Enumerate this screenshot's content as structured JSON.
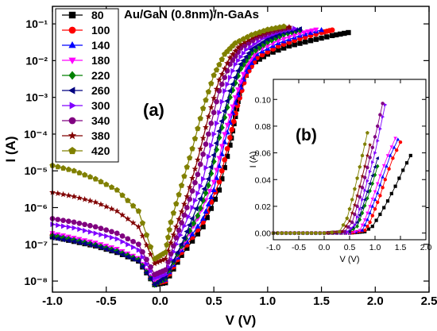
{
  "chart_data": [
    {
      "type": "scatter",
      "title": "Au/GaN (0.8nm)/n-GaAs",
      "panel_label": "(a)",
      "xlabel": "V (V)",
      "ylabel": "I (A)",
      "xlim": [
        -1.0,
        2.5
      ],
      "ylim": [
        5e-09,
        0.3
      ],
      "yscale": "log",
      "xticks": [
        "-1.0",
        "-0.5",
        "0.0",
        "0.5",
        "1.0",
        "1.5",
        "2.0",
        "2.5"
      ],
      "yticks": [
        "10⁻⁸",
        "10⁻⁷",
        "10⁻⁶",
        "10⁻⁵",
        "10⁻⁴",
        "10⁻³",
        "10⁻²",
        "10⁻¹"
      ],
      "legend_position": "top-left",
      "series": [
        {
          "name": "80",
          "color": "#000000",
          "marker": "square",
          "x": [
            -1.0,
            -0.8,
            -0.6,
            -0.4,
            -0.2,
            -0.05,
            0.05,
            0.2,
            0.4,
            0.55,
            0.65,
            0.7,
            0.75,
            0.85,
            1.0,
            1.2,
            1.4,
            1.6,
            1.75
          ],
          "y": [
            1.6e-07,
            1.2e-07,
            9e-08,
            6e-08,
            3.5e-08,
            8e-09,
            9e-09,
            5e-08,
            3e-07,
            3e-06,
            5e-05,
            0.0003,
            0.002,
            0.008,
            0.015,
            0.025,
            0.035,
            0.048,
            0.058
          ]
        },
        {
          "name": "100",
          "color": "#ff0000",
          "marker": "circle",
          "x": [
            -1.0,
            -0.8,
            -0.6,
            -0.4,
            -0.2,
            -0.05,
            0.05,
            0.2,
            0.4,
            0.55,
            0.65,
            0.72,
            0.8,
            0.9,
            1.1,
            1.3,
            1.5,
            1.6
          ],
          "y": [
            1.8e-07,
            1.3e-07,
            9.5e-08,
            6.5e-08,
            3.8e-08,
            8.5e-09,
            1e-08,
            6e-08,
            4e-07,
            5e-06,
            8e-05,
            0.0006,
            0.004,
            0.012,
            0.025,
            0.04,
            0.058,
            0.068
          ]
        },
        {
          "name": "140",
          "color": "#0000ff",
          "marker": "triangle-up",
          "x": [
            -1.0,
            -0.8,
            -0.6,
            -0.4,
            -0.2,
            -0.05,
            0.05,
            0.2,
            0.4,
            0.5,
            0.6,
            0.7,
            0.8,
            0.9,
            1.1,
            1.3,
            1.5
          ],
          "y": [
            1.9e-07,
            1.4e-07,
            1e-07,
            7e-08,
            4e-08,
            9e-09,
            1.1e-08,
            7e-08,
            5e-07,
            3e-06,
            6e-05,
            0.0007,
            0.005,
            0.015,
            0.03,
            0.048,
            0.068
          ]
        },
        {
          "name": "180",
          "color": "#ff00ff",
          "marker": "triangle-down",
          "x": [
            -1.0,
            -0.8,
            -0.6,
            -0.4,
            -0.2,
            -0.05,
            0.05,
            0.2,
            0.35,
            0.5,
            0.6,
            0.7,
            0.8,
            0.9,
            1.1,
            1.3,
            1.45
          ],
          "y": [
            2e-07,
            1.5e-07,
            1.1e-07,
            7.5e-08,
            4.2e-08,
            9e-09,
            1.2e-08,
            8e-08,
            5e-07,
            5e-06,
            0.0001,
            0.001,
            0.007,
            0.018,
            0.035,
            0.055,
            0.07
          ]
        },
        {
          "name": "220",
          "color": "#008000",
          "marker": "diamond",
          "x": [
            -1.0,
            -0.8,
            -0.6,
            -0.4,
            -0.2,
            -0.05,
            0.05,
            0.2,
            0.35,
            0.45,
            0.55,
            0.65,
            0.75,
            0.85,
            1.0,
            1.15,
            1.3
          ],
          "y": [
            1.7e-07,
            1.3e-07,
            9.5e-08,
            6.5e-08,
            3.8e-08,
            8e-09,
            1.2e-08,
            9e-08,
            6e-07,
            4e-06,
            8e-05,
            0.001,
            0.006,
            0.016,
            0.032,
            0.052,
            0.068
          ]
        },
        {
          "name": "260",
          "color": "#000080",
          "marker": "triangle-left",
          "x": [
            -1.0,
            -0.8,
            -0.6,
            -0.4,
            -0.2,
            -0.05,
            0.05,
            0.2,
            0.3,
            0.45,
            0.55,
            0.65,
            0.75,
            0.85,
            1.0,
            1.15,
            1.3
          ],
          "y": [
            1.5e-07,
            1.2e-07,
            9e-08,
            6e-08,
            3.5e-08,
            8e-09,
            1.3e-08,
            1e-07,
            5e-07,
            6e-06,
            0.00012,
            0.0015,
            0.008,
            0.02,
            0.038,
            0.058,
            0.072
          ]
        },
        {
          "name": "300",
          "color": "#8000ff",
          "marker": "triangle-right",
          "x": [
            -1.0,
            -0.8,
            -0.6,
            -0.4,
            -0.2,
            -0.05,
            0.05,
            0.15,
            0.3,
            0.4,
            0.5,
            0.6,
            0.7,
            0.8,
            0.95,
            1.1,
            1.25
          ],
          "y": [
            3.5e-07,
            2.8e-07,
            2e-07,
            1.4e-07,
            7e-08,
            1.2e-08,
            1.5e-08,
            1e-07,
            1e-06,
            6e-06,
            0.0001,
            0.0015,
            0.008,
            0.02,
            0.04,
            0.06,
            0.075
          ]
        },
        {
          "name": "340",
          "color": "#800080",
          "marker": "circle",
          "x": [
            -1.0,
            -0.8,
            -0.6,
            -0.4,
            -0.2,
            -0.05,
            0.05,
            0.15,
            0.25,
            0.35,
            0.45,
            0.55,
            0.65,
            0.75,
            0.9,
            1.05,
            1.2
          ],
          "y": [
            5e-07,
            4e-07,
            3e-07,
            2e-07,
            1e-07,
            1.5e-08,
            2e-08,
            1.5e-07,
            1e-06,
            8e-06,
            0.0001,
            0.0015,
            0.008,
            0.022,
            0.042,
            0.062,
            0.078
          ]
        },
        {
          "name": "380",
          "color": "#800000",
          "marker": "star",
          "x": [
            -1.0,
            -0.8,
            -0.6,
            -0.4,
            -0.2,
            -0.05,
            0.05,
            0.15,
            0.25,
            0.35,
            0.45,
            0.55,
            0.65,
            0.75,
            0.9,
            1.05,
            1.2
          ],
          "y": [
            2.6e-06,
            2e-06,
            1.4e-06,
            8e-07,
            3e-07,
            3e-08,
            4e-08,
            3e-07,
            2e-06,
            2e-05,
            0.0003,
            0.003,
            0.012,
            0.028,
            0.048,
            0.068,
            0.082
          ]
        },
        {
          "name": "420",
          "color": "#808000",
          "marker": "pentagon",
          "x": [
            -1.0,
            -0.8,
            -0.6,
            -0.4,
            -0.2,
            -0.05,
            0.05,
            0.1,
            0.2,
            0.3,
            0.4,
            0.5,
            0.6,
            0.7,
            0.85,
            1.0,
            1.15
          ],
          "y": [
            1.4e-05,
            1e-05,
            6e-06,
            3e-06,
            8e-07,
            4e-08,
            6e-08,
            4e-07,
            4e-06,
            4e-05,
            0.0005,
            0.004,
            0.015,
            0.03,
            0.05,
            0.07,
            0.085
          ]
        }
      ]
    },
    {
      "type": "scatter",
      "panel_label": "(b)",
      "xlabel": "V (V)",
      "ylabel": "I (A)",
      "xlim": [
        -1.0,
        2.0
      ],
      "ylim": [
        -0.005,
        0.115
      ],
      "xticks": [
        "-1.0",
        "-0.5",
        "0.0",
        "0.5",
        "1.0",
        "1.5",
        "2.0"
      ],
      "yticks": [
        "0.00",
        "0.02",
        "0.04",
        "0.06",
        "0.08",
        "0.10"
      ],
      "series": [
        {
          "name": "80",
          "color": "#000000",
          "marker": "square",
          "x": [
            -1.0,
            -0.5,
            0.0,
            0.5,
            0.8,
            0.95,
            1.1,
            1.25,
            1.4,
            1.55,
            1.7
          ],
          "y": [
            0,
            0,
            0,
            0,
            0.001,
            0.005,
            0.014,
            0.024,
            0.035,
            0.047,
            0.058
          ]
        },
        {
          "name": "100",
          "color": "#ff0000",
          "marker": "circle",
          "x": [
            -1.0,
            -0.5,
            0.0,
            0.5,
            0.8,
            0.9,
            1.0,
            1.1,
            1.2,
            1.35,
            1.5
          ],
          "y": [
            0,
            0,
            0,
            0,
            0.002,
            0.008,
            0.018,
            0.028,
            0.04,
            0.056,
            0.068
          ]
        },
        {
          "name": "140",
          "color": "#0000ff",
          "marker": "triangle-up",
          "x": [
            -1.0,
            -0.5,
            0.0,
            0.5,
            0.75,
            0.85,
            0.95,
            1.05,
            1.15,
            1.3,
            1.45
          ],
          "y": [
            0,
            0,
            0,
            0,
            0.002,
            0.01,
            0.02,
            0.03,
            0.042,
            0.058,
            0.07
          ]
        },
        {
          "name": "180",
          "color": "#ff00ff",
          "marker": "triangle-down",
          "x": [
            -1.0,
            -0.5,
            0.0,
            0.5,
            0.7,
            0.8,
            0.9,
            1.0,
            1.1,
            1.25,
            1.4
          ],
          "y": [
            0,
            0,
            0,
            0,
            0.002,
            0.01,
            0.02,
            0.031,
            0.043,
            0.058,
            0.071
          ]
        },
        {
          "name": "220",
          "color": "#008000",
          "marker": "diamond",
          "x": [
            -1.0,
            -0.5,
            0.0,
            0.5,
            0.65,
            0.75,
            0.85,
            0.95,
            1.05
          ],
          "y": [
            0,
            0,
            0,
            0.001,
            0.005,
            0.015,
            0.026,
            0.037,
            0.05
          ]
        },
        {
          "name": "260",
          "color": "#000080",
          "marker": "triangle-left",
          "x": [
            -1.0,
            -0.5,
            0.0,
            0.5,
            0.65,
            0.75,
            0.85,
            0.95,
            1.05
          ],
          "y": [
            0,
            0,
            0,
            0.001,
            0.008,
            0.019,
            0.031,
            0.043,
            0.056
          ]
        },
        {
          "name": "300",
          "color": "#8000ff",
          "marker": "triangle-right",
          "x": [
            -1.0,
            -0.5,
            0.0,
            0.45,
            0.6,
            0.7,
            0.8,
            0.9,
            1.0,
            1.1,
            1.2
          ],
          "y": [
            0,
            0,
            0,
            0.001,
            0.006,
            0.018,
            0.032,
            0.046,
            0.06,
            0.078,
            0.096
          ]
        },
        {
          "name": "340",
          "color": "#800080",
          "marker": "circle",
          "x": [
            -1.0,
            -0.5,
            0.0,
            0.4,
            0.55,
            0.65,
            0.75,
            0.85,
            0.95,
            1.05,
            1.15
          ],
          "y": [
            0,
            0,
            0,
            0.001,
            0.008,
            0.02,
            0.034,
            0.049,
            0.064,
            0.08,
            0.097
          ]
        },
        {
          "name": "380",
          "color": "#800000",
          "marker": "star",
          "x": [
            -1.0,
            -0.5,
            0.0,
            0.35,
            0.5,
            0.6,
            0.7,
            0.8,
            0.9
          ],
          "y": [
            0,
            0,
            0,
            0.001,
            0.009,
            0.021,
            0.035,
            0.05,
            0.066
          ]
        },
        {
          "name": "420",
          "color": "#808000",
          "marker": "pentagon",
          "x": [
            -1.0,
            -0.5,
            0.0,
            0.3,
            0.45,
            0.55,
            0.65,
            0.75,
            0.85
          ],
          "y": [
            0,
            0,
            0,
            0.001,
            0.011,
            0.025,
            0.041,
            0.058,
            0.075
          ]
        }
      ]
    }
  ]
}
